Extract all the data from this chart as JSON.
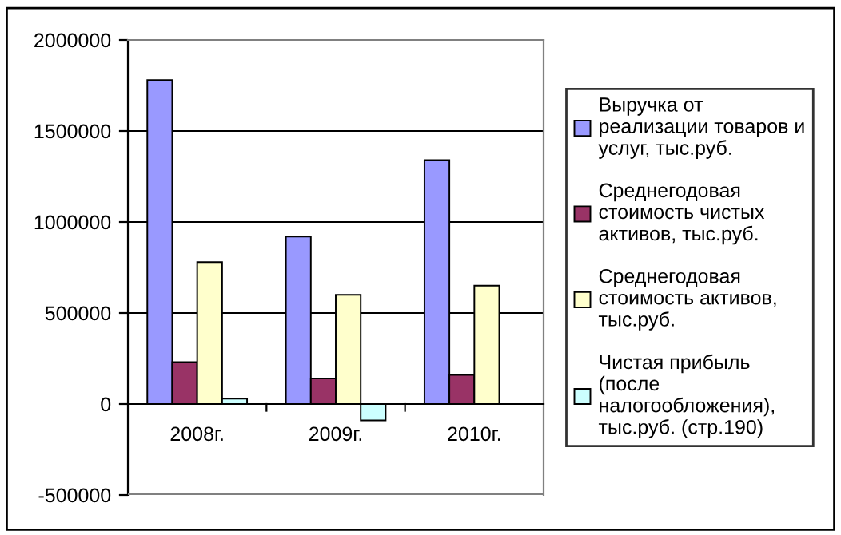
{
  "chart_data": {
    "type": "bar",
    "categories": [
      "2008г.",
      "2009г.",
      "2010г."
    ],
    "series": [
      {
        "name": "Выручка от\nреализации товаров и\nуслуг, тыс.руб.",
        "color": "#9999ff",
        "values": [
          1780000,
          920000,
          1340000
        ]
      },
      {
        "name": "Среднегодовая\nстоимость чистых\nактивов, тыс.руб.",
        "color": "#993366",
        "values": [
          230000,
          140000,
          160000
        ]
      },
      {
        "name": "Среднегодовая\nстоимость активов,\nтыс.руб.",
        "color": "#ffffcc",
        "values": [
          780000,
          600000,
          650000
        ]
      },
      {
        "name": "Чистая прибыль\n(после\nналогообложения),\nтыс.руб. (стр.190)",
        "color": "#ccffff",
        "values": [
          30000,
          -90000,
          null
        ]
      }
    ],
    "ylim": [
      -500000,
      2000000
    ],
    "yticks": [
      -500000,
      0,
      500000,
      1000000,
      1500000,
      2000000
    ],
    "grid": "y",
    "legend": "right"
  }
}
